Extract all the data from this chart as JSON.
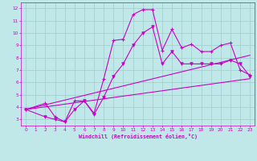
{
  "xlabel": "Windchill (Refroidissement éolien,°C)",
  "bg_color": "#c0e8e8",
  "grid_color": "#a0cccc",
  "line_color": "#cc00cc",
  "ylim": [
    2.5,
    12.5
  ],
  "xlim": [
    -0.5,
    23.5
  ],
  "yticks": [
    3,
    4,
    5,
    6,
    7,
    8,
    9,
    10,
    11,
    12
  ],
  "xticks": [
    0,
    1,
    2,
    3,
    4,
    5,
    6,
    7,
    8,
    9,
    10,
    11,
    12,
    13,
    14,
    15,
    16,
    17,
    18,
    19,
    20,
    21,
    22,
    23
  ],
  "series1_x": [
    0,
    2,
    3,
    4,
    5,
    6,
    7,
    8,
    9,
    10,
    11,
    12,
    13,
    14,
    15,
    16,
    17,
    18,
    19,
    20,
    21,
    22,
    23
  ],
  "series1_y": [
    3.8,
    4.3,
    3.2,
    2.8,
    4.5,
    4.5,
    3.5,
    6.3,
    9.4,
    9.5,
    11.5,
    11.9,
    11.9,
    8.6,
    10.3,
    8.8,
    9.1,
    8.5,
    8.5,
    9.0,
    9.2,
    7.0,
    6.6
  ],
  "series2_x": [
    0,
    2,
    3,
    4,
    5,
    6,
    7,
    8,
    9,
    10,
    11,
    12,
    13,
    14,
    15,
    16,
    17,
    18,
    19,
    20,
    21,
    22,
    23
  ],
  "series2_y": [
    3.8,
    3.2,
    3.0,
    2.8,
    3.8,
    4.5,
    3.4,
    4.8,
    6.5,
    7.5,
    9.0,
    10.0,
    10.5,
    7.5,
    8.5,
    7.5,
    7.5,
    7.5,
    7.5,
    7.5,
    7.8,
    7.5,
    6.5
  ],
  "series3_x": [
    0,
    23
  ],
  "series3_y": [
    3.8,
    8.2
  ],
  "series4_x": [
    0,
    23
  ],
  "series4_y": [
    3.8,
    6.3
  ]
}
